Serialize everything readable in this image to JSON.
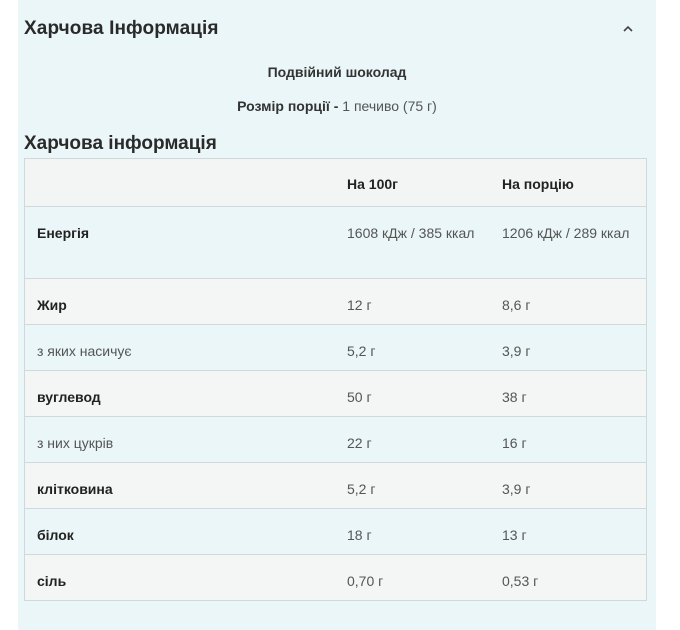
{
  "header": {
    "title": "Харчова Інформація"
  },
  "flavour": "Подвійний шоколад",
  "serving": {
    "label": "Розмір порції -",
    "value": " 1 печиво (75 г)"
  },
  "table": {
    "title": "Харчова інформація",
    "columns": [
      "",
      "На 100г",
      "На порцію"
    ],
    "rows": [
      {
        "name": "Енергія",
        "per100": "1608 кДж / 385 ккал",
        "perServing": "1206 кДж / 289 ккал"
      },
      {
        "name": "Жир",
        "per100": "12 г",
        "perServing": "8,6 г"
      },
      {
        "name": "з яких насичує",
        "per100": "5,2 г",
        "perServing": "3,9 г"
      },
      {
        "name": "вуглевод",
        "per100": "50 г",
        "perServing": "38 г"
      },
      {
        "name": "з них цукрів",
        "per100": "22 г",
        "perServing": "16 г"
      },
      {
        "name": "клітковина",
        "per100": "5,2 г",
        "perServing": "3,9 г"
      },
      {
        "name": "білок",
        "per100": "18 г",
        "perServing": "13 г"
      },
      {
        "name": "сіль",
        "per100": "0,70 г",
        "perServing": "0,53 г"
      }
    ]
  },
  "icons": {
    "collapse": "chevron-up-icon"
  }
}
